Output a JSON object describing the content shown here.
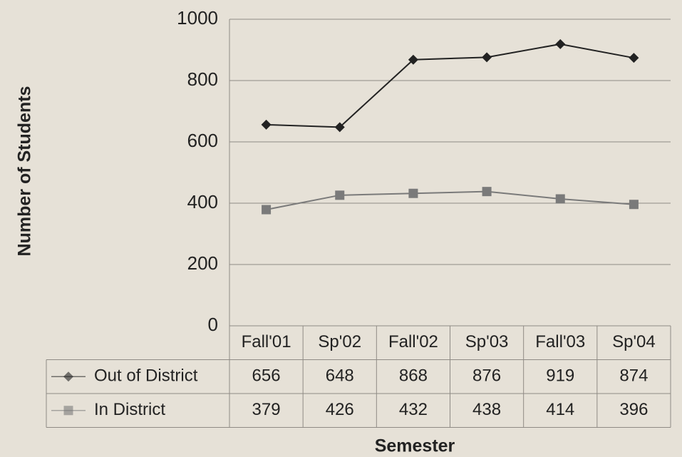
{
  "chart_data": {
    "type": "line",
    "xlabel": "Semester",
    "ylabel": "Number of Students",
    "categories": [
      "Fall'01",
      "Sp'02",
      "Fall'02",
      "Sp'03",
      "Fall'03",
      "Sp'04"
    ],
    "series": [
      {
        "name": "Out of District",
        "color": "#222222",
        "marker": "diamond",
        "values": [
          656,
          648,
          868,
          876,
          919,
          874
        ]
      },
      {
        "name": "In District",
        "color": "#7a7a7a",
        "marker": "square",
        "values": [
          379,
          426,
          432,
          438,
          414,
          396
        ]
      }
    ],
    "ylim": [
      0,
      1000
    ],
    "yticks": [
      0,
      200,
      400,
      600,
      800,
      1000
    ],
    "grid": true
  }
}
